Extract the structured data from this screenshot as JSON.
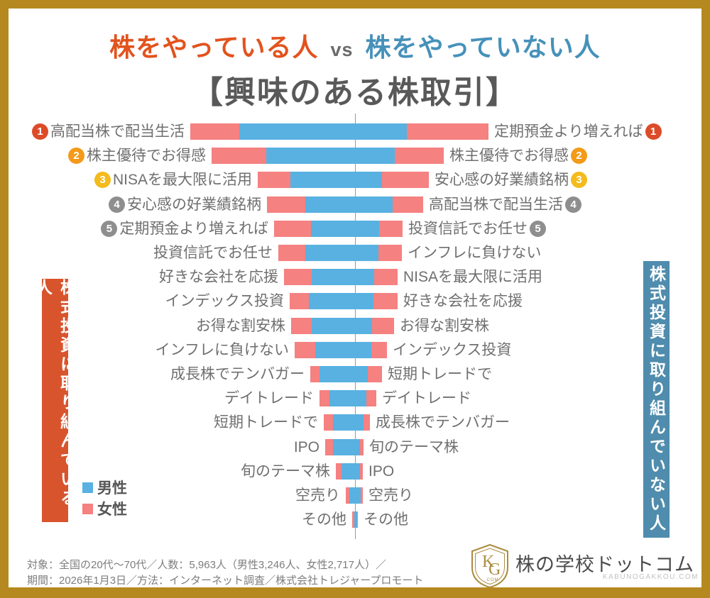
{
  "frame": {
    "border_color": "#b5891f"
  },
  "title": {
    "line1_left": "株をやっている人",
    "line1_vs": "vs",
    "line1_right": "株をやっていない人",
    "line2": "【興味のある株取引】"
  },
  "banners": {
    "left_text": "株式投資に取り組んでいる人",
    "right_text": "株式投資に取り組んでいない人",
    "left_color": "#d8542d",
    "right_color": "#4f8cad"
  },
  "legend": {
    "male_label": "男性",
    "female_label": "女性"
  },
  "colors": {
    "male": "#58b1e1",
    "female": "#f58181",
    "badge_colors": {
      "1": "#dc4b28",
      "2": "#f39a1a",
      "3": "#f3bb1c",
      "4": "#8e8e8e",
      "5": "#8e8e8e"
    }
  },
  "chart_data": {
    "type": "bar",
    "subtype": "bidirectional stacked tornado chart (no numeric axis shown; values are approximate bar segment lengths in screenshot pixels)",
    "title": "株をやっている人 vs 株をやっていない人【興味のある株取引】",
    "left_group": "株式投資に取り組んでいる人",
    "right_group": "株式投資に取り組んでいない人",
    "series": [
      "男性",
      "女性"
    ],
    "stack_order": "female outermost, male nearest center on both sides",
    "legend_position": "bottom-left",
    "grid": false,
    "rows": [
      {
        "left_label": "高配当株で配当生活",
        "left_rank": 1,
        "left_female": 69,
        "left_male": 163,
        "right_label": "定期預金より増えれば",
        "right_rank": 1,
        "right_male": 73,
        "right_female": 115
      },
      {
        "left_label": "株主優待でお得感",
        "left_rank": 2,
        "left_female": 77,
        "left_male": 125,
        "right_label": "株主優待でお得感",
        "right_rank": 2,
        "right_male": 56,
        "right_female": 69
      },
      {
        "left_label": "NISAを最大限に活用",
        "left_rank": 3,
        "left_female": 46,
        "left_male": 91,
        "right_label": "安心感の好業績銘柄",
        "right_rank": 3,
        "right_male": 38,
        "right_female": 66
      },
      {
        "left_label": "安心感の好業績銘柄",
        "left_rank": 4,
        "left_female": 54,
        "left_male": 70,
        "right_label": "高配当株で配当生活",
        "right_rank": 4,
        "right_male": 53,
        "right_female": 43
      },
      {
        "left_label": "定期預金より増えれば",
        "left_rank": 5,
        "left_female": 52,
        "left_male": 62,
        "right_label": "投資信託でお任せ",
        "right_rank": 5,
        "right_male": 34,
        "right_female": 33
      },
      {
        "left_label": "投資信託でお任せ",
        "left_rank": null,
        "left_female": 38,
        "left_male": 70,
        "right_label": "インフレに負けない",
        "right_rank": null,
        "right_male": 33,
        "right_female": 33
      },
      {
        "left_label": "好きな会社を応援",
        "left_rank": null,
        "left_female": 39,
        "left_male": 61,
        "right_label": "NISAを最大限に活用",
        "right_rank": null,
        "right_male": 27,
        "right_female": 33
      },
      {
        "left_label": "インデックス投資",
        "left_rank": null,
        "left_female": 27,
        "left_male": 65,
        "right_label": "好きな会社を応援",
        "right_rank": null,
        "right_male": 26,
        "right_female": 34
      },
      {
        "left_label": "お得な割安株",
        "left_rank": null,
        "left_female": 29,
        "left_male": 61,
        "right_label": "お得な割安株",
        "right_rank": null,
        "right_male": 24,
        "right_female": 31
      },
      {
        "left_label": "インフレに負けない",
        "left_rank": null,
        "left_female": 29,
        "left_male": 56,
        "right_label": "インデックス投資",
        "right_rank": null,
        "right_male": 23,
        "right_female": 22
      },
      {
        "left_label": "成長株でテンバガー",
        "left_rank": null,
        "left_female": 13,
        "left_male": 50,
        "right_label": "短期トレードで",
        "right_rank": null,
        "right_male": 18,
        "right_female": 20
      },
      {
        "left_label": "デイトレード",
        "left_rank": null,
        "left_female": 14,
        "left_male": 36,
        "right_label": "デイトレード",
        "right_rank": null,
        "right_male": 16,
        "right_female": 14
      },
      {
        "left_label": "短期トレードで",
        "left_rank": null,
        "left_female": 13,
        "left_male": 31,
        "right_label": "成長株でテンバガー",
        "right_rank": null,
        "right_male": 12,
        "right_female": 9
      },
      {
        "left_label": "IPO",
        "left_rank": null,
        "left_female": 11,
        "left_male": 31,
        "right_label": "旬のテーマ株",
        "right_rank": null,
        "right_male": 7,
        "right_female": 5
      },
      {
        "left_label": "旬のテーマ株",
        "left_rank": null,
        "left_female": 8,
        "left_male": 19,
        "right_label": "IPO",
        "right_rank": null,
        "right_male": 7,
        "right_female": 4
      },
      {
        "left_label": "空売り",
        "left_rank": null,
        "left_female": 5,
        "left_male": 8,
        "right_label": "空売り",
        "right_rank": null,
        "right_male": 8,
        "right_female": 3
      },
      {
        "left_label": "その他",
        "left_rank": null,
        "left_female": 3,
        "left_male": 1,
        "right_label": "その他",
        "right_rank": null,
        "right_male": 3,
        "right_female": 1
      }
    ]
  },
  "footer": {
    "line1": "対象：全国の20代〜70代／人数：5,963人（男性3,246人、女性2,717人）／",
    "line2": "期間：2026年1月3日／方法：インターネット調査／株式会社トレジャープロモート"
  },
  "logo": {
    "name": "株の学校ドットコム",
    "sub": "KABUNOGAKKOU.COM",
    "monogram": "KG",
    "monogram_sub": ".COM"
  }
}
